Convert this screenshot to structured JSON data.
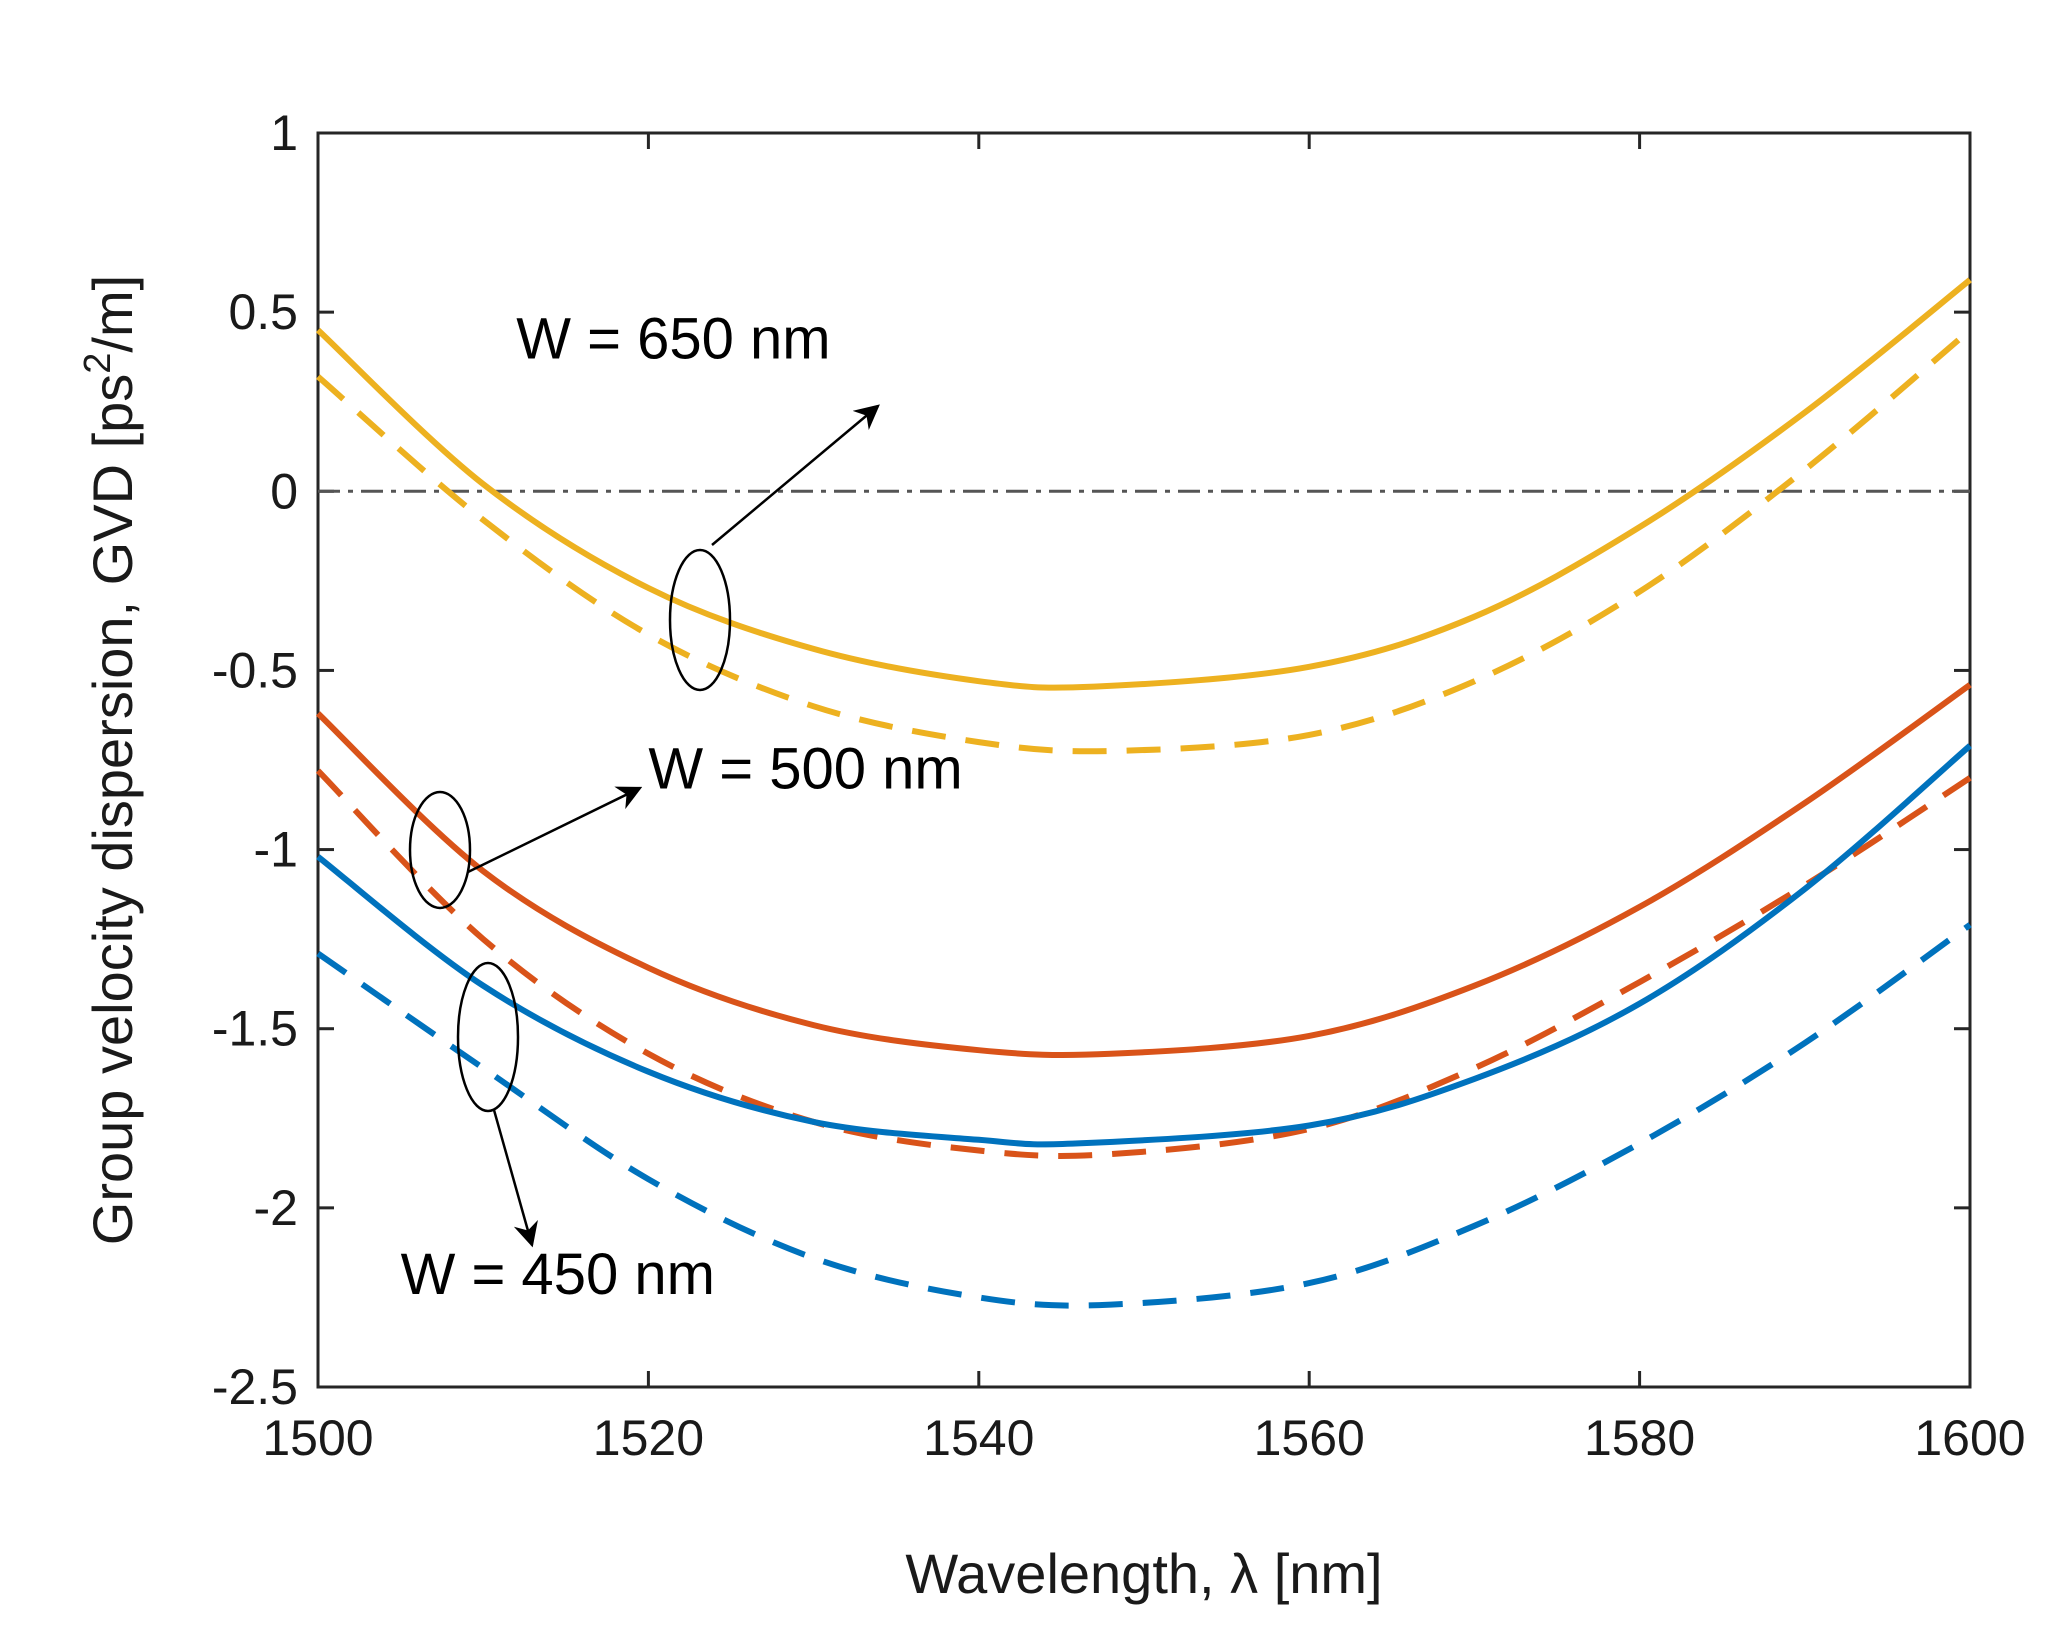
{
  "chart_data": {
    "type": "line",
    "title": "",
    "xlabel": "Wavelength, λ  [nm]",
    "ylabel_prefix": "Group velocity dispersion, GVD [ps",
    "ylabel_sup": "2",
    "ylabel_suffix": "/m]",
    "xlim": [
      1500,
      1600
    ],
    "ylim": [
      -2.5,
      1
    ],
    "xticks": [
      1500,
      1520,
      1540,
      1560,
      1580,
      1600
    ],
    "xtick_labels": [
      "1500",
      "1520",
      "1540",
      "1560",
      "1580",
      "1600"
    ],
    "yticks": [
      1,
      0.5,
      0,
      -0.5,
      -1,
      -1.5,
      -2,
      -2.5
    ],
    "ytick_labels": [
      "1",
      "0.5",
      "0",
      "-0.5",
      "-1",
      "-1.5",
      "-2",
      "-2.5"
    ],
    "reference_line": {
      "y": 0,
      "style": "dash-dot",
      "color": "#555555"
    },
    "series": [
      {
        "name": "W = 650 nm (solid)",
        "color": "#EDB120",
        "dash": "solid",
        "x": [
          1500,
          1510,
          1520,
          1530,
          1540,
          1547,
          1560,
          1570,
          1580,
          1590,
          1600
        ],
        "y": [
          0.45,
          0.02,
          -0.27,
          -0.44,
          -0.53,
          -0.545,
          -0.49,
          -0.35,
          -0.1,
          0.22,
          0.59
        ]
      },
      {
        "name": "W = 650 nm (dashed)",
        "color": "#EDB120",
        "dash": "dashed",
        "x": [
          1500,
          1510,
          1520,
          1530,
          1540,
          1548,
          1560,
          1570,
          1580,
          1590,
          1600
        ],
        "y": [
          0.32,
          -0.08,
          -0.4,
          -0.6,
          -0.7,
          -0.725,
          -0.68,
          -0.53,
          -0.28,
          0.06,
          0.45
        ]
      },
      {
        "name": "W = 500 nm (solid)",
        "color": "#D95319",
        "dash": "solid",
        "x": [
          1500,
          1510,
          1520,
          1530,
          1540,
          1548,
          1560,
          1570,
          1580,
          1590,
          1600
        ],
        "y": [
          -0.62,
          -1.06,
          -1.33,
          -1.49,
          -1.56,
          -1.57,
          -1.52,
          -1.38,
          -1.16,
          -0.87,
          -0.54
        ]
      },
      {
        "name": "W = 500 nm (dashed)",
        "color": "#D95319",
        "dash": "dashed",
        "x": [
          1500,
          1510,
          1520,
          1530,
          1540,
          1548,
          1560,
          1570,
          1580,
          1590,
          1600
        ],
        "y": [
          -0.78,
          -1.25,
          -1.57,
          -1.76,
          -1.84,
          -1.85,
          -1.78,
          -1.61,
          -1.37,
          -1.1,
          -0.8
        ]
      },
      {
        "name": "W = 450 nm (solid)",
        "color": "#0072BD",
        "dash": "solid",
        "x": [
          1500,
          1510,
          1520,
          1530,
          1540,
          1546,
          1560,
          1570,
          1580,
          1590,
          1600
        ],
        "y": [
          -1.02,
          -1.38,
          -1.62,
          -1.76,
          -1.81,
          -1.82,
          -1.77,
          -1.64,
          -1.43,
          -1.11,
          -0.71
        ]
      },
      {
        "name": "W = 450 nm (dashed)",
        "color": "#0072BD",
        "dash": "dashed",
        "x": [
          1500,
          1510,
          1520,
          1530,
          1540,
          1548,
          1560,
          1570,
          1580,
          1590,
          1600
        ],
        "y": [
          -1.29,
          -1.61,
          -1.92,
          -2.14,
          -2.25,
          -2.27,
          -2.21,
          -2.05,
          -1.82,
          -1.54,
          -1.21
        ]
      }
    ],
    "annotations": [
      {
        "text": "W = 650 nm",
        "x": 1512,
        "y": 0.37
      },
      {
        "text": "W = 500 nm",
        "x": 1520,
        "y": -0.83
      },
      {
        "text": "W = 450 nm",
        "x": 1505,
        "y": -2.24
      }
    ]
  }
}
